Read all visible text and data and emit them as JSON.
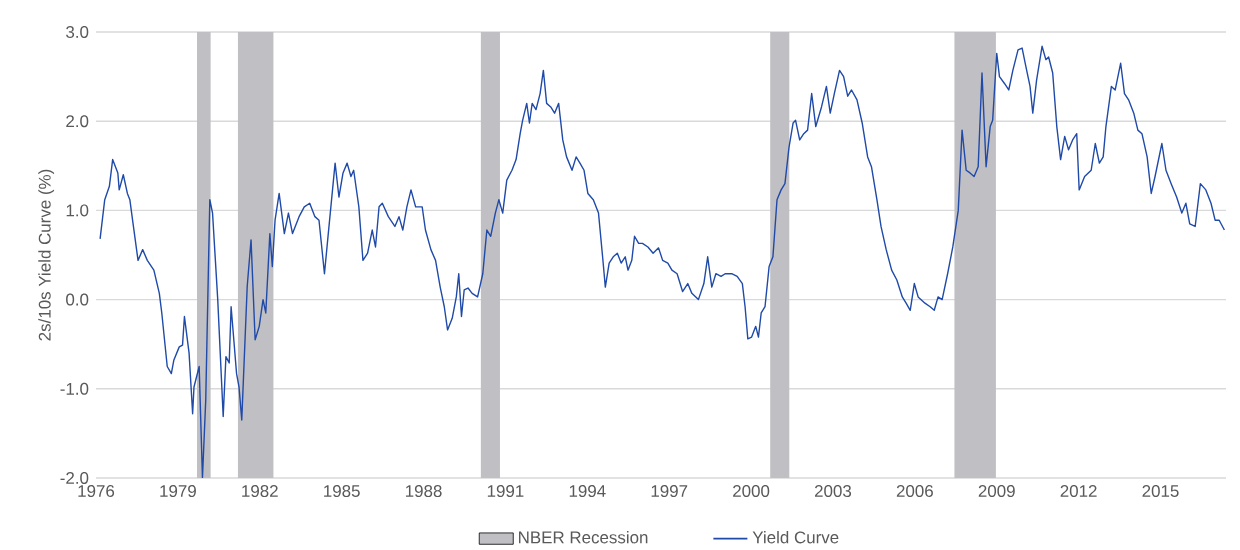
{
  "chart_data": {
    "type": "line",
    "ylabel": "2s/10s Yield Curve (%)",
    "xlim": [
      1976,
      2017.4
    ],
    "xticks": [
      1976,
      1979,
      1982,
      1985,
      1988,
      1991,
      1994,
      1997,
      2000,
      2003,
      2006,
      2009,
      2012,
      2015
    ],
    "ylim": [
      -2,
      3
    ],
    "yticks": [
      {
        "value": -2,
        "label": "-2.0"
      },
      {
        "value": -1,
        "label": "-1.0"
      },
      {
        "value": 0,
        "label": "0.0"
      },
      {
        "value": 1,
        "label": "1.0"
      },
      {
        "value": 2,
        "label": "2.0"
      },
      {
        "value": 3,
        "label": "3.0"
      }
    ],
    "grid": "y",
    "legend": "bottom",
    "bands": [
      {
        "axis": "x",
        "from": 1979.7,
        "to": 1980.2,
        "label": "NBER Recession",
        "color": "#c0bfc4"
      },
      {
        "axis": "x",
        "from": 1981.2,
        "to": 1982.5,
        "color": "#c0bfc4"
      },
      {
        "axis": "x",
        "from": 1990.1,
        "to": 1990.8,
        "color": "#c0bfc4"
      },
      {
        "axis": "x",
        "from": 2000.7,
        "to": 2001.4,
        "color": "#c0bfc4"
      },
      {
        "axis": "x",
        "from": 2007.45,
        "to": 2008.97,
        "color": "#c0bfc4"
      }
    ],
    "series": [
      {
        "name": "Yield Curve",
        "color": "#1f4aa8",
        "x": [
          1976.15,
          1976.32,
          1976.49,
          1976.61,
          1976.8,
          1976.85,
          1977.0,
          1977.15,
          1977.24,
          1977.34,
          1977.54,
          1977.71,
          1977.88,
          1978.12,
          1978.32,
          1978.41,
          1978.61,
          1978.76,
          1978.85,
          1979.05,
          1979.17,
          1979.24,
          1979.41,
          1979.54,
          1979.59,
          1979.78,
          1979.9,
          1980.02,
          1980.17,
          1980.27,
          1980.46,
          1980.66,
          1980.76,
          1980.88,
          1980.95,
          1981.15,
          1981.24,
          1981.34,
          1981.54,
          1981.68,
          1981.83,
          1981.98,
          1982.12,
          1982.22,
          1982.37,
          1982.46,
          1982.56,
          1982.71,
          1982.9,
          1983.05,
          1983.2,
          1983.44,
          1983.63,
          1983.83,
          1984.02,
          1984.17,
          1984.37,
          1984.51,
          1984.76,
          1984.9,
          1985.05,
          1985.2,
          1985.34,
          1985.44,
          1985.63,
          1985.78,
          1985.95,
          1986.12,
          1986.24,
          1986.37,
          1986.49,
          1986.71,
          1986.95,
          1987.1,
          1987.24,
          1987.39,
          1987.54,
          1987.71,
          1987.95,
          1988.07,
          1988.27,
          1988.44,
          1988.61,
          1988.76,
          1988.88,
          1989.05,
          1989.2,
          1989.29,
          1989.39,
          1989.49,
          1989.63,
          1989.78,
          1989.98,
          1990.17,
          1990.32,
          1990.46,
          1990.63,
          1990.76,
          1990.9,
          1991.05,
          1991.24,
          1991.39,
          1991.54,
          1991.63,
          1991.78,
          1991.88,
          1991.98,
          1992.12,
          1992.27,
          1992.39,
          1992.51,
          1992.66,
          1992.8,
          1992.95,
          1993.1,
          1993.24,
          1993.44,
          1993.59,
          1993.73,
          1993.88,
          1994.02,
          1994.22,
          1994.41,
          1994.56,
          1994.66,
          1994.8,
          1994.95,
          1995.1,
          1995.24,
          1995.39,
          1995.49,
          1995.63,
          1995.73,
          1995.88,
          1996.02,
          1996.22,
          1996.41,
          1996.61,
          1996.76,
          1996.95,
          1997.1,
          1997.29,
          1997.49,
          1997.68,
          1997.83,
          1998.07,
          1998.27,
          1998.41,
          1998.56,
          1998.71,
          1998.9,
          1999.05,
          1999.29,
          1999.49,
          1999.68,
          1999.78,
          1999.88,
          2000.02,
          2000.17,
          2000.27,
          2000.37,
          2000.51,
          2000.66,
          2000.8,
          2000.95,
          2001.1,
          2001.24,
          2001.39,
          2001.54,
          2001.63,
          2001.78,
          2001.93,
          2002.07,
          2002.22,
          2002.37,
          2002.58,
          2002.76,
          2002.9,
          2003.05,
          2003.24,
          2003.39,
          2003.54,
          2003.68,
          2003.88,
          2004.07,
          2004.27,
          2004.41,
          2004.61,
          2004.76,
          2004.95,
          2005.15,
          2005.34,
          2005.54,
          2005.68,
          2005.83,
          2005.98,
          2006.12,
          2006.37,
          2006.56,
          2006.71,
          2006.85,
          2007.0,
          2007.2,
          2007.39,
          2007.59,
          2007.73,
          2007.88,
          2008.02,
          2008.17,
          2008.32,
          2008.46,
          2008.61,
          2008.76,
          2008.85,
          2009.0,
          2009.1,
          2009.29,
          2009.44,
          2009.59,
          2009.78,
          2009.93,
          2010.07,
          2010.22,
          2010.32,
          2010.46,
          2010.66,
          2010.8,
          2010.9,
          2011.05,
          2011.2,
          2011.34,
          2011.49,
          2011.63,
          2011.78,
          2011.93,
          2012.02,
          2012.22,
          2012.46,
          2012.61,
          2012.76,
          2012.9,
          2013.0,
          2013.2,
          2013.34,
          2013.54,
          2013.68,
          2013.83,
          2014.02,
          2014.17,
          2014.32,
          2014.51,
          2014.66,
          2014.8,
          2015.05,
          2015.2,
          2015.39,
          2015.59,
          2015.78,
          2015.93,
          2016.07,
          2016.27,
          2016.46,
          2016.66,
          2016.85,
          2017.0,
          2017.15,
          2017.34
        ],
        "values": [
          0.68,
          1.12,
          1.27,
          1.57,
          1.42,
          1.23,
          1.4,
          1.19,
          1.12,
          0.89,
          0.44,
          0.56,
          0.44,
          0.33,
          0.07,
          -0.15,
          -0.75,
          -0.83,
          -0.68,
          -0.53,
          -0.51,
          -0.19,
          -0.6,
          -1.28,
          -0.98,
          -0.75,
          -2.0,
          -1.13,
          1.12,
          0.97,
          0.0,
          -1.31,
          -0.64,
          -0.71,
          -0.08,
          -0.83,
          -0.98,
          -1.35,
          0.15,
          0.67,
          -0.45,
          -0.3,
          0.0,
          -0.15,
          0.74,
          0.37,
          0.89,
          1.19,
          0.74,
          0.97,
          0.74,
          0.93,
          1.04,
          1.08,
          0.93,
          0.89,
          0.29,
          0.74,
          1.53,
          1.15,
          1.42,
          1.53,
          1.38,
          1.45,
          1.04,
          0.44,
          0.52,
          0.78,
          0.59,
          1.04,
          1.08,
          0.93,
          0.82,
          0.93,
          0.78,
          1.04,
          1.23,
          1.04,
          1.04,
          0.78,
          0.56,
          0.44,
          0.14,
          -0.08,
          -0.34,
          -0.21,
          0.03,
          0.29,
          -0.19,
          0.11,
          0.13,
          0.07,
          0.03,
          0.29,
          0.78,
          0.71,
          0.97,
          1.12,
          0.97,
          1.34,
          1.45,
          1.57,
          1.86,
          2.01,
          2.2,
          1.98,
          2.2,
          2.13,
          2.31,
          2.57,
          2.2,
          2.16,
          2.09,
          2.2,
          1.79,
          1.6,
          1.45,
          1.6,
          1.53,
          1.45,
          1.19,
          1.12,
          0.97,
          0.48,
          0.14,
          0.41,
          0.48,
          0.52,
          0.41,
          0.48,
          0.33,
          0.44,
          0.71,
          0.63,
          0.63,
          0.59,
          0.52,
          0.58,
          0.44,
          0.41,
          0.33,
          0.29,
          0.09,
          0.18,
          0.07,
          0.0,
          0.18,
          0.48,
          0.14,
          0.29,
          0.26,
          0.29,
          0.29,
          0.26,
          0.18,
          -0.08,
          -0.44,
          -0.42,
          -0.3,
          -0.42,
          -0.15,
          -0.08,
          0.37,
          0.48,
          1.12,
          1.23,
          1.3,
          1.71,
          1.98,
          2.01,
          1.79,
          1.86,
          1.9,
          2.31,
          1.94,
          2.16,
          2.39,
          2.09,
          2.31,
          2.57,
          2.5,
          2.28,
          2.35,
          2.24,
          1.98,
          1.6,
          1.49,
          1.12,
          0.82,
          0.56,
          0.33,
          0.22,
          0.03,
          -0.04,
          -0.12,
          0.18,
          0.03,
          -0.04,
          -0.08,
          -0.12,
          0.03,
          0.0,
          0.29,
          0.59,
          1.0,
          1.9,
          1.45,
          1.42,
          1.38,
          1.49,
          2.54,
          1.49,
          1.94,
          2.01,
          2.76,
          2.5,
          2.42,
          2.35,
          2.57,
          2.8,
          2.82,
          2.61,
          2.39,
          2.09,
          2.46,
          2.84,
          2.69,
          2.72,
          2.54,
          1.94,
          1.57,
          1.83,
          1.68,
          1.79,
          1.86,
          1.23,
          1.38,
          1.45,
          1.75,
          1.53,
          1.6,
          1.94,
          2.39,
          2.35,
          2.65,
          2.31,
          2.24,
          2.09,
          1.9,
          1.86,
          1.6,
          1.19,
          1.38,
          1.75,
          1.45,
          1.3,
          1.15,
          0.97,
          1.08,
          0.85,
          0.82,
          1.3,
          1.23,
          1.08,
          0.89,
          0.89,
          0.78
        ]
      }
    ]
  }
}
